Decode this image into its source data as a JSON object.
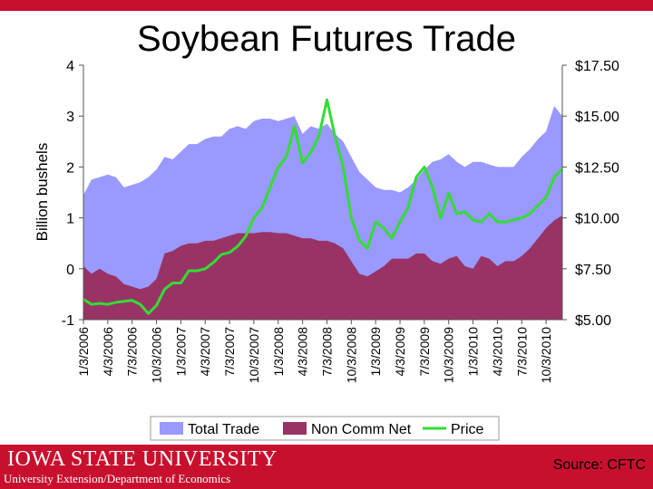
{
  "title": "Soybean Futures Trade",
  "footer": {
    "university": "IOWA STATE UNIVERSITY",
    "department": "University Extension/Department of Economics",
    "source": "Source: CFTC"
  },
  "colors": {
    "accent": "#c8102e",
    "total_trade": "#9999ff",
    "non_comm_net": "#993366",
    "price": "#33dd33"
  },
  "chart_data": {
    "type": "area",
    "title": "Soybean Futures Trade",
    "ylabel_left": "Billion bushels",
    "left_ticks": [
      "4",
      "3",
      "2",
      "1",
      "0",
      "-1"
    ],
    "left_ylim": [
      -1,
      4
    ],
    "right_ticks": [
      "$17.50",
      "$15.00",
      "$12.50",
      "$10.00",
      "$7.50",
      "$5.00"
    ],
    "right_ylim": [
      5,
      17.5
    ],
    "x_tick_labels": [
      "1/3/2006",
      "4/3/2006",
      "7/3/2006",
      "10/3/2006",
      "1/3/2007",
      "4/3/2007",
      "7/3/2007",
      "10/3/2007",
      "1/3/2008",
      "4/3/2008",
      "7/3/2008",
      "10/3/2008",
      "1/3/2009",
      "4/3/2009",
      "7/3/2009",
      "10/3/2009",
      "1/3/2010",
      "4/3/2010",
      "7/3/2010",
      "10/3/2010"
    ],
    "legend": [
      "Total Trade",
      "Non Comm Net",
      "Price"
    ],
    "legend_position": "bottom",
    "grid": false,
    "x": [
      "1/3/2006",
      "2/3/2006",
      "3/3/2006",
      "4/3/2006",
      "5/3/2006",
      "6/3/2006",
      "7/3/2006",
      "8/3/2006",
      "9/3/2006",
      "10/3/2006",
      "11/3/2006",
      "12/3/2006",
      "1/3/2007",
      "2/3/2007",
      "3/3/2007",
      "4/3/2007",
      "5/3/2007",
      "6/3/2007",
      "7/3/2007",
      "8/3/2007",
      "9/3/2007",
      "10/3/2007",
      "11/3/2007",
      "12/3/2007",
      "1/3/2008",
      "2/3/2008",
      "3/3/2008",
      "4/3/2008",
      "5/3/2008",
      "6/3/2008",
      "7/3/2008",
      "8/3/2008",
      "9/3/2008",
      "10/3/2008",
      "11/3/2008",
      "12/3/2008",
      "1/3/2009",
      "2/3/2009",
      "3/3/2009",
      "4/3/2009",
      "5/3/2009",
      "6/3/2009",
      "7/3/2009",
      "8/3/2009",
      "9/3/2009",
      "10/3/2009",
      "11/3/2009",
      "12/3/2009",
      "1/3/2010",
      "2/3/2010",
      "3/3/2010",
      "4/3/2010",
      "5/3/2010",
      "6/3/2010",
      "7/3/2010",
      "8/3/2010",
      "9/3/2010",
      "10/3/2010",
      "11/3/2010",
      "12/3/2010"
    ],
    "series": [
      {
        "name": "Total Trade",
        "axis": "left",
        "values": [
          1.45,
          1.75,
          1.8,
          1.85,
          1.8,
          1.6,
          1.65,
          1.7,
          1.8,
          1.95,
          2.2,
          2.15,
          2.3,
          2.45,
          2.45,
          2.55,
          2.6,
          2.6,
          2.75,
          2.8,
          2.75,
          2.9,
          2.95,
          2.95,
          2.9,
          2.95,
          3.0,
          2.65,
          2.8,
          2.75,
          2.85,
          2.65,
          2.5,
          2.2,
          1.9,
          1.75,
          1.6,
          1.55,
          1.55,
          1.5,
          1.6,
          1.75,
          1.95,
          2.1,
          2.15,
          2.25,
          2.1,
          2.0,
          2.1,
          2.1,
          2.05,
          2.0,
          2.0,
          2.0,
          2.2,
          2.35,
          2.55,
          2.7,
          3.2,
          3.0
        ]
      },
      {
        "name": "Non Comm Net",
        "axis": "left",
        "values": [
          0.05,
          -0.1,
          0.0,
          -0.1,
          -0.15,
          -0.3,
          -0.35,
          -0.4,
          -0.35,
          -0.2,
          0.3,
          0.35,
          0.45,
          0.5,
          0.5,
          0.55,
          0.55,
          0.6,
          0.65,
          0.7,
          0.7,
          0.7,
          0.72,
          0.72,
          0.7,
          0.7,
          0.65,
          0.6,
          0.6,
          0.55,
          0.55,
          0.5,
          0.4,
          0.15,
          -0.1,
          -0.15,
          -0.05,
          0.05,
          0.2,
          0.2,
          0.2,
          0.3,
          0.3,
          0.15,
          0.1,
          0.2,
          0.25,
          0.05,
          0.0,
          0.25,
          0.2,
          0.05,
          0.15,
          0.15,
          0.25,
          0.4,
          0.6,
          0.8,
          0.95,
          1.05
        ]
      },
      {
        "name": "Price",
        "axis": "right",
        "values": [
          6.0,
          5.75,
          5.8,
          5.75,
          5.85,
          5.9,
          5.95,
          5.75,
          5.3,
          5.7,
          6.5,
          6.8,
          6.8,
          7.4,
          7.4,
          7.5,
          7.8,
          8.2,
          8.3,
          8.6,
          9.1,
          10.0,
          10.5,
          11.5,
          12.5,
          13.0,
          14.5,
          12.7,
          13.2,
          14.0,
          15.8,
          14.0,
          12.5,
          10.0,
          8.9,
          8.5,
          9.8,
          9.5,
          9.0,
          9.8,
          10.5,
          12.0,
          12.5,
          11.5,
          10.0,
          11.2,
          10.2,
          10.3,
          9.9,
          9.8,
          10.2,
          9.8,
          9.8,
          9.9,
          10.0,
          10.2,
          10.6,
          11.0,
          12.0,
          12.4
        ]
      }
    ]
  }
}
